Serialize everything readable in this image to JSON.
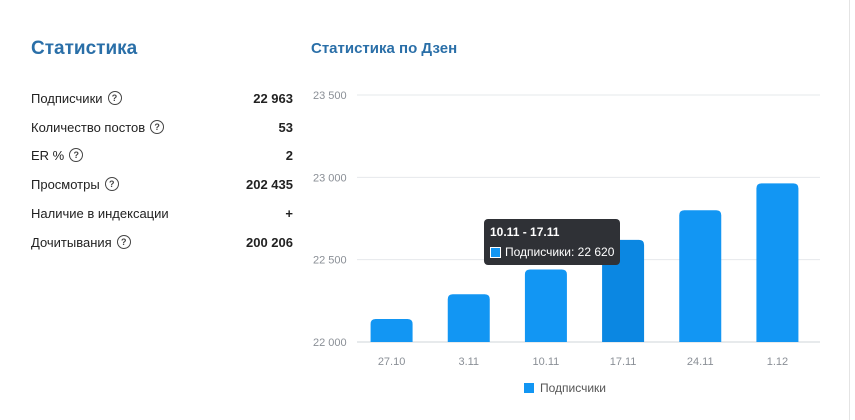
{
  "stats": {
    "title": "Статистика",
    "rows": [
      {
        "label": "Подписчики",
        "value": "22 963",
        "has_help": true
      },
      {
        "label": "Количество постов",
        "value": "53",
        "has_help": true
      },
      {
        "label": "ER %",
        "value": "2",
        "has_help": true
      },
      {
        "label": "Просмотры",
        "value": "202 435",
        "has_help": true
      },
      {
        "label": "Наличие в индексации",
        "value": "+",
        "has_help": false
      },
      {
        "label": "Дочитывания",
        "value": "200 206",
        "has_help": true
      }
    ],
    "help_glyph": "?"
  },
  "chart_title": "Статистика по Дзен",
  "tooltip": {
    "range": "10.11 - 17.11",
    "series_label": "Подписчики: 22 620"
  },
  "legend": {
    "label": "Подписчики"
  },
  "colors": {
    "bar": "#1296f3",
    "bar_active": "#0b87e2",
    "accent_title": "#2a6fa8"
  },
  "chart_data": {
    "type": "bar",
    "categories": [
      "27.10",
      "3.11",
      "10.11",
      "17.11",
      "24.11",
      "1.12"
    ],
    "series": [
      {
        "name": "Подписчики",
        "values": [
          22140,
          22290,
          22440,
          22620,
          22800,
          22963
        ]
      }
    ],
    "ylim": [
      22000,
      23500
    ],
    "yticks": [
      22000,
      22500,
      23000,
      23500
    ],
    "ytick_labels": [
      "22 000",
      "22 500",
      "23 000",
      "23 500"
    ],
    "grid": true,
    "legend": "bottom",
    "highlighted_category": "17.11"
  }
}
